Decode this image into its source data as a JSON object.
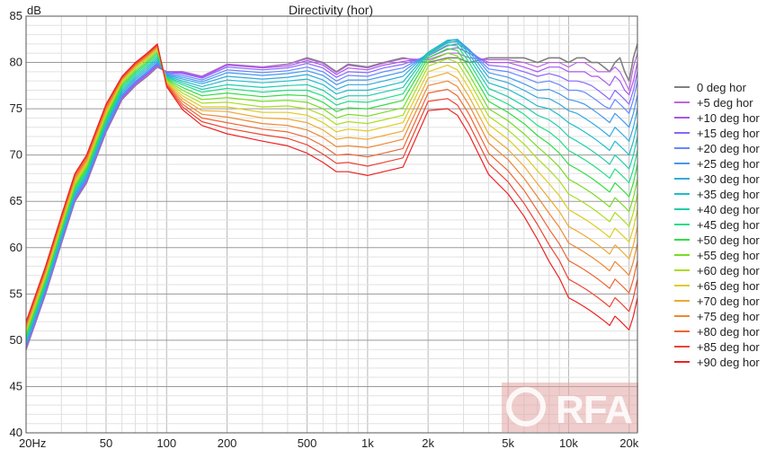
{
  "chart_data": {
    "type": "line",
    "title": "Directivity (hor)",
    "ylabel": "dB",
    "xlabel": "",
    "x_scale": "log",
    "xlim": [
      20,
      22000
    ],
    "ylim": [
      40,
      85
    ],
    "grid": true,
    "legend_position": "right",
    "x_tick_labels": [
      {
        "value": 20,
        "label": "20Hz"
      },
      {
        "value": 50,
        "label": "50"
      },
      {
        "value": 100,
        "label": "100"
      },
      {
        "value": 200,
        "label": "200"
      },
      {
        "value": 500,
        "label": "500"
      },
      {
        "value": 1000,
        "label": "1k"
      },
      {
        "value": 2000,
        "label": "2k"
      },
      {
        "value": 5000,
        "label": "5k"
      },
      {
        "value": 10000,
        "label": "10k"
      },
      {
        "value": 20000,
        "label": "20k"
      }
    ],
    "y_ticks": [
      40,
      45,
      50,
      55,
      60,
      65,
      70,
      75,
      80,
      85
    ],
    "x": [
      20,
      25,
      30,
      35,
      40,
      50,
      60,
      70,
      80,
      90,
      100,
      120,
      150,
      200,
      300,
      400,
      500,
      600,
      700,
      800,
      1000,
      1200,
      1500,
      2000,
      2500,
      2800,
      3200,
      4000,
      5000,
      6000,
      7000,
      8000,
      9000,
      10000,
      11000,
      12000,
      13000,
      14000,
      15000,
      16000,
      17000,
      18000,
      19000,
      20000,
      21000,
      22000
    ],
    "series": [
      {
        "name": "0 deg hor",
        "color": "#808080",
        "values": [
          49.0,
          55.0,
          60.5,
          65.0,
          67.0,
          72.5,
          76.0,
          77.5,
          78.5,
          79.5,
          79.0,
          79.0,
          78.5,
          79.8,
          79.5,
          79.8,
          80.5,
          80.0,
          79.0,
          79.8,
          79.5,
          80.0,
          80.5,
          80.0,
          80.5,
          80.5,
          80.0,
          80.5,
          80.5,
          80.5,
          80.0,
          80.5,
          80.5,
          80.0,
          80.5,
          80.5,
          80.0,
          80.0,
          79.5,
          79.0,
          80.0,
          80.5,
          79.0,
          78.0,
          80.5,
          82.0
        ]
      },
      {
        "name": "+5 deg hor",
        "color": "#bb66dd",
        "values": [
          49.1,
          55.1,
          60.6,
          65.1,
          67.1,
          72.6,
          76.1,
          77.6,
          78.6,
          79.6,
          79.0,
          79.0,
          78.5,
          79.8,
          79.5,
          79.8,
          80.4,
          79.9,
          78.9,
          79.7,
          79.4,
          79.9,
          80.4,
          80.3,
          81.0,
          81.0,
          80.5,
          80.3,
          80.3,
          80.0,
          79.5,
          80.0,
          80.0,
          79.5,
          80.0,
          80.0,
          79.5,
          79.0,
          79.0,
          79.0,
          79.5,
          79.0,
          78.0,
          77.0,
          79.5,
          81.0
        ]
      },
      {
        "name": "+10 deg hor",
        "color": "#aa55ee",
        "values": [
          49.2,
          55.2,
          60.7,
          65.2,
          67.2,
          72.7,
          76.2,
          77.7,
          78.7,
          79.7,
          78.9,
          78.9,
          78.4,
          79.7,
          79.4,
          79.6,
          80.2,
          79.7,
          78.7,
          79.4,
          79.2,
          79.7,
          80.1,
          80.5,
          81.4,
          81.6,
          81.0,
          80.0,
          80.0,
          79.5,
          79.0,
          79.5,
          79.5,
          79.0,
          79.0,
          79.0,
          78.5,
          78.5,
          78.0,
          77.5,
          78.5,
          78.0,
          77.0,
          76.5,
          78.0,
          80.0
        ]
      },
      {
        "name": "+15 deg hor",
        "color": "#8866ff",
        "values": [
          49.3,
          55.3,
          60.8,
          65.3,
          67.3,
          72.8,
          76.3,
          77.8,
          78.8,
          79.8,
          78.9,
          78.8,
          78.3,
          79.5,
          79.2,
          79.4,
          79.9,
          79.4,
          78.4,
          79.0,
          78.9,
          79.4,
          79.8,
          80.7,
          81.8,
          82.0,
          81.3,
          79.7,
          79.5,
          79.0,
          78.5,
          78.8,
          78.5,
          78.0,
          78.0,
          77.8,
          77.5,
          77.0,
          76.5,
          76.0,
          77.0,
          76.5,
          76.0,
          75.5,
          77.0,
          79.0
        ]
      },
      {
        "name": "+20 deg hor",
        "color": "#6688ff",
        "values": [
          49.4,
          55.4,
          60.9,
          65.4,
          67.4,
          72.9,
          76.4,
          77.9,
          78.9,
          79.9,
          78.8,
          78.6,
          78.1,
          79.2,
          78.9,
          79.1,
          79.5,
          79.0,
          78.0,
          78.6,
          78.5,
          79.0,
          79.4,
          80.9,
          82.1,
          82.3,
          81.4,
          79.3,
          79.0,
          78.4,
          77.8,
          78.0,
          77.6,
          77.0,
          77.0,
          76.8,
          76.3,
          75.8,
          75.3,
          75.0,
          76.0,
          75.5,
          75.0,
          74.5,
          76.0,
          78.0
        ]
      },
      {
        "name": "+25 deg hor",
        "color": "#4499ee",
        "values": [
          49.5,
          55.5,
          61.0,
          65.5,
          67.5,
          73.0,
          76.5,
          78.0,
          79.0,
          80.0,
          78.7,
          78.4,
          77.9,
          78.9,
          78.6,
          78.8,
          79.1,
          78.6,
          77.6,
          78.1,
          78.1,
          78.5,
          79.0,
          81.0,
          82.3,
          82.5,
          81.4,
          78.9,
          78.4,
          77.7,
          77.0,
          77.1,
          76.6,
          76.0,
          75.8,
          75.5,
          75.0,
          74.5,
          74.0,
          73.5,
          74.5,
          74.0,
          73.5,
          73.0,
          74.5,
          76.5
        ]
      },
      {
        "name": "+30 deg hor",
        "color": "#33aadd",
        "values": [
          49.7,
          55.7,
          61.2,
          65.7,
          67.7,
          73.2,
          76.7,
          78.2,
          79.2,
          80.2,
          78.6,
          78.2,
          77.7,
          78.5,
          78.2,
          78.4,
          78.7,
          78.1,
          77.1,
          77.6,
          77.6,
          78.0,
          78.5,
          81.1,
          82.4,
          82.5,
          81.2,
          78.4,
          77.8,
          77.0,
          76.2,
          76.1,
          75.5,
          74.8,
          74.5,
          74.0,
          73.5,
          73.0,
          72.5,
          72.0,
          73.0,
          72.5,
          72.0,
          71.5,
          73.0,
          75.0
        ]
      },
      {
        "name": "+35 deg hor",
        "color": "#22bbcc",
        "values": [
          49.9,
          55.9,
          61.4,
          65.9,
          67.9,
          73.4,
          76.9,
          78.4,
          79.4,
          80.4,
          78.5,
          78.0,
          77.4,
          78.1,
          77.8,
          78.0,
          78.2,
          77.6,
          76.6,
          77.0,
          77.0,
          77.4,
          77.9,
          81.1,
          82.4,
          82.4,
          80.9,
          77.8,
          77.1,
          76.2,
          75.3,
          75.0,
          74.3,
          73.5,
          73.0,
          72.5,
          72.0,
          71.5,
          71.0,
          70.5,
          71.5,
          71.0,
          70.5,
          70.0,
          71.5,
          73.5
        ]
      },
      {
        "name": "+40 deg hor",
        "color": "#22ccaa",
        "values": [
          50.1,
          56.1,
          61.6,
          66.1,
          68.1,
          73.6,
          77.1,
          78.6,
          79.6,
          80.6,
          78.4,
          77.8,
          77.1,
          77.6,
          77.3,
          77.5,
          77.6,
          77.0,
          76.0,
          76.4,
          76.4,
          76.8,
          77.3,
          81.0,
          82.2,
          82.2,
          80.5,
          77.2,
          76.3,
          75.3,
          74.3,
          73.8,
          73.0,
          72.0,
          71.5,
          71.0,
          70.5,
          70.0,
          69.5,
          69.0,
          70.0,
          69.5,
          69.0,
          68.5,
          70.0,
          72.0
        ]
      },
      {
        "name": "+45 deg hor",
        "color": "#22dd88",
        "values": [
          50.3,
          56.3,
          61.8,
          66.3,
          68.3,
          73.8,
          77.3,
          78.8,
          79.8,
          80.8,
          78.3,
          77.6,
          76.8,
          77.2,
          76.8,
          77.0,
          77.0,
          76.4,
          75.4,
          75.8,
          75.7,
          76.1,
          76.6,
          80.8,
          81.9,
          81.8,
          80.0,
          76.5,
          75.5,
          74.4,
          73.2,
          72.5,
          71.6,
          70.5,
          70.0,
          69.5,
          69.0,
          68.5,
          68.0,
          67.5,
          68.5,
          68.0,
          67.5,
          67.0,
          68.5,
          70.5
        ]
      },
      {
        "name": "+50 deg hor",
        "color": "#33dd44",
        "values": [
          50.5,
          56.5,
          62.0,
          66.5,
          68.5,
          74.0,
          77.5,
          79.0,
          80.0,
          81.0,
          78.2,
          77.3,
          76.4,
          76.7,
          76.3,
          76.5,
          76.4,
          75.7,
          74.7,
          75.1,
          75.0,
          75.4,
          75.9,
          80.5,
          81.5,
          81.3,
          79.4,
          75.8,
          74.6,
          73.4,
          72.1,
          71.2,
          70.2,
          69.0,
          68.5,
          68.0,
          67.5,
          67.0,
          66.5,
          66.0,
          67.0,
          66.5,
          66.0,
          65.5,
          67.0,
          69.0
        ]
      },
      {
        "name": "+55 deg hor",
        "color": "#77dd22",
        "values": [
          50.7,
          56.7,
          62.2,
          66.7,
          68.7,
          74.2,
          77.7,
          79.2,
          80.2,
          81.2,
          78.1,
          77.0,
          76.0,
          76.2,
          75.8,
          75.9,
          75.7,
          75.0,
          74.0,
          74.4,
          74.2,
          74.6,
          75.1,
          80.1,
          81.0,
          80.7,
          78.7,
          75.0,
          73.7,
          72.3,
          70.9,
          69.8,
          68.7,
          67.4,
          66.9,
          66.4,
          65.9,
          65.4,
          64.9,
          64.4,
          65.4,
          64.9,
          64.4,
          63.9,
          65.4,
          67.4
        ]
      },
      {
        "name": "+60 deg hor",
        "color": "#aadd22",
        "values": [
          50.9,
          56.9,
          62.4,
          66.9,
          68.9,
          74.4,
          77.9,
          79.4,
          80.4,
          81.4,
          78.0,
          76.7,
          75.6,
          75.7,
          75.2,
          75.3,
          75.0,
          74.3,
          73.3,
          73.6,
          73.4,
          73.8,
          74.3,
          79.6,
          80.4,
          80.0,
          78.0,
          74.2,
          72.7,
          71.2,
          69.6,
          68.4,
          67.2,
          65.8,
          65.3,
          64.8,
          64.3,
          63.8,
          63.3,
          62.8,
          63.8,
          63.3,
          62.8,
          62.3,
          63.8,
          65.8
        ]
      },
      {
        "name": "+65 deg hor",
        "color": "#ddcc22",
        "values": [
          51.1,
          57.1,
          62.6,
          67.1,
          69.1,
          74.6,
          78.0,
          79.5,
          80.5,
          81.5,
          77.9,
          76.4,
          75.2,
          75.2,
          74.6,
          74.6,
          74.3,
          73.5,
          72.5,
          72.8,
          72.6,
          73.0,
          73.5,
          79.0,
          79.7,
          79.2,
          77.2,
          73.3,
          71.7,
          70.0,
          68.3,
          66.9,
          65.6,
          64.1,
          63.6,
          63.1,
          62.6,
          62.1,
          61.6,
          61.1,
          62.1,
          61.6,
          61.1,
          60.6,
          62.1,
          64.1
        ]
      },
      {
        "name": "+70 deg hor",
        "color": "#eeaa33",
        "values": [
          51.3,
          57.3,
          62.8,
          67.3,
          69.3,
          74.8,
          78.1,
          79.6,
          80.6,
          81.6,
          77.8,
          76.1,
          74.8,
          74.7,
          74.0,
          73.9,
          73.5,
          72.7,
          71.7,
          71.9,
          71.7,
          72.1,
          72.6,
          78.3,
          78.9,
          78.3,
          76.3,
          72.3,
          70.6,
          68.8,
          66.9,
          65.3,
          63.9,
          62.3,
          61.8,
          61.3,
          60.8,
          60.3,
          59.8,
          59.3,
          60.3,
          59.8,
          59.3,
          58.8,
          60.3,
          62.3
        ]
      },
      {
        "name": "+75 deg hor",
        "color": "#ee8833",
        "values": [
          51.5,
          57.5,
          63.0,
          67.5,
          69.5,
          75.0,
          78.2,
          79.7,
          80.7,
          81.7,
          77.7,
          75.8,
          74.4,
          74.1,
          73.4,
          73.2,
          72.7,
          71.9,
          70.9,
          71.0,
          70.8,
          71.2,
          71.7,
          77.5,
          78.0,
          77.4,
          75.4,
          71.3,
          69.5,
          67.5,
          65.5,
          63.7,
          62.2,
          60.5,
          60.0,
          59.5,
          59.0,
          58.5,
          58.0,
          57.5,
          58.5,
          58.0,
          57.5,
          57.0,
          58.5,
          60.5
        ]
      },
      {
        "name": "+80 deg hor",
        "color": "#ee6633",
        "values": [
          51.7,
          57.7,
          63.2,
          67.7,
          69.7,
          75.2,
          78.3,
          79.8,
          80.8,
          81.8,
          77.6,
          75.5,
          74.0,
          73.5,
          72.8,
          72.5,
          71.9,
          71.0,
          70.0,
          70.1,
          69.8,
          70.2,
          70.7,
          76.7,
          77.1,
          76.4,
          74.4,
          70.2,
          68.3,
          66.2,
          64.0,
          62.0,
          60.4,
          58.6,
          58.1,
          57.6,
          57.1,
          56.6,
          56.1,
          55.6,
          56.6,
          56.1,
          55.6,
          55.1,
          56.6,
          58.6
        ]
      },
      {
        "name": "+85 deg hor",
        "color": "#ee4433",
        "values": [
          51.9,
          57.9,
          63.4,
          67.9,
          69.9,
          75.4,
          78.4,
          79.9,
          80.9,
          81.9,
          77.5,
          75.2,
          73.6,
          72.9,
          72.2,
          71.8,
          71.1,
          70.1,
          69.1,
          69.2,
          68.8,
          69.2,
          69.7,
          75.8,
          76.1,
          75.4,
          73.3,
          69.1,
          67.1,
          64.8,
          62.5,
          60.3,
          58.6,
          56.6,
          56.1,
          55.6,
          55.1,
          54.6,
          54.1,
          53.6,
          54.6,
          54.1,
          53.6,
          53.1,
          54.6,
          56.6
        ]
      },
      {
        "name": "+90 deg hor",
        "color": "#ee2222",
        "values": [
          52.0,
          58.0,
          63.5,
          68.0,
          70.0,
          75.5,
          78.5,
          80.0,
          81.0,
          82.0,
          77.4,
          74.9,
          73.2,
          72.3,
          71.5,
          71.0,
          70.2,
          69.2,
          68.2,
          68.2,
          67.8,
          68.2,
          68.7,
          74.8,
          75.0,
          74.3,
          72.2,
          67.9,
          65.8,
          63.4,
          60.9,
          58.5,
          56.7,
          54.6,
          54.1,
          53.6,
          53.1,
          52.6,
          52.1,
          51.6,
          52.6,
          52.1,
          51.6,
          51.1,
          52.6,
          54.6
        ]
      }
    ],
    "watermark": {
      "text": "RFA"
    }
  }
}
